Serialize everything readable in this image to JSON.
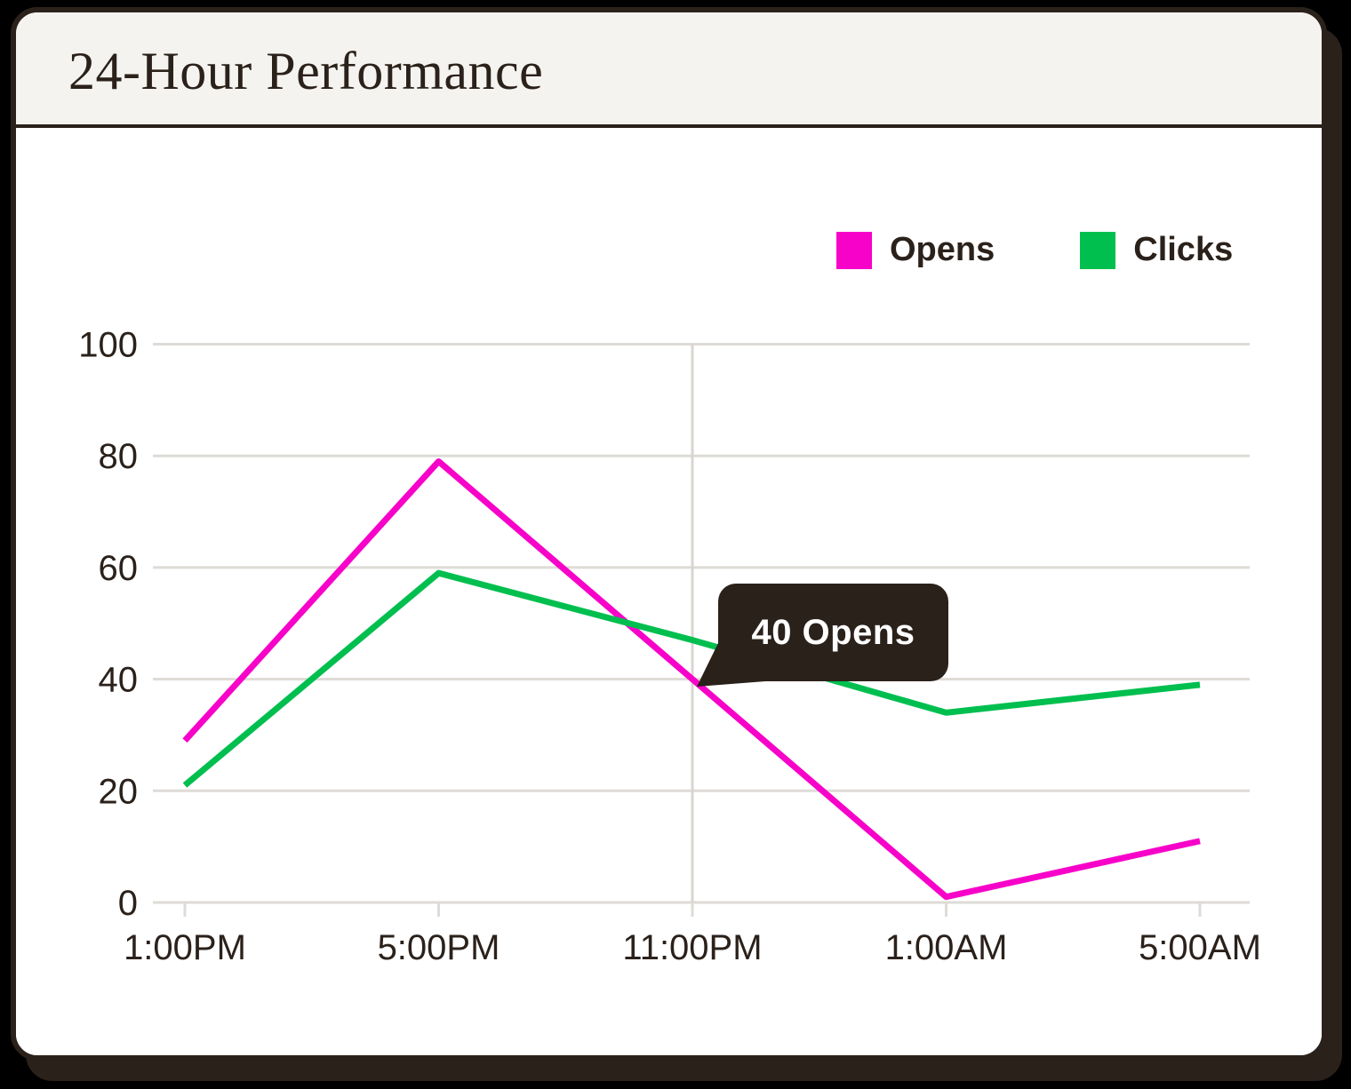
{
  "header": {
    "title": "24-Hour Performance"
  },
  "colors": {
    "page_bg": "#000000",
    "ink": "#2b211b",
    "header_bg": "#f5f3ef",
    "panel": "#ffffff",
    "grid": "#dedbd7",
    "crosshair": "#d8d5d1",
    "opens": "#f702c9",
    "clicks": "#00bf4f",
    "tooltip_bg": "#2b211b",
    "tooltip_text": "#ffffff"
  },
  "chart_data": {
    "type": "line",
    "title": "24-Hour Performance",
    "categories": [
      "1:00PM",
      "5:00PM",
      "11:00PM",
      "1:00AM",
      "5:00AM"
    ],
    "series": [
      {
        "name": "Opens",
        "color_key": "opens",
        "values": [
          29,
          79,
          40,
          1,
          11
        ]
      },
      {
        "name": "Clicks",
        "color_key": "clicks",
        "values": [
          21,
          59,
          47,
          34,
          39
        ]
      }
    ],
    "xlabel": "",
    "ylabel": "",
    "ylim": [
      0,
      100
    ],
    "yticks": [
      0,
      20,
      40,
      60,
      80,
      100
    ],
    "grid": "horizontal",
    "legend_position": "top-right",
    "tooltip": {
      "label": "40 Opens",
      "series": "Opens",
      "category": "11:00PM",
      "value": 40
    }
  }
}
